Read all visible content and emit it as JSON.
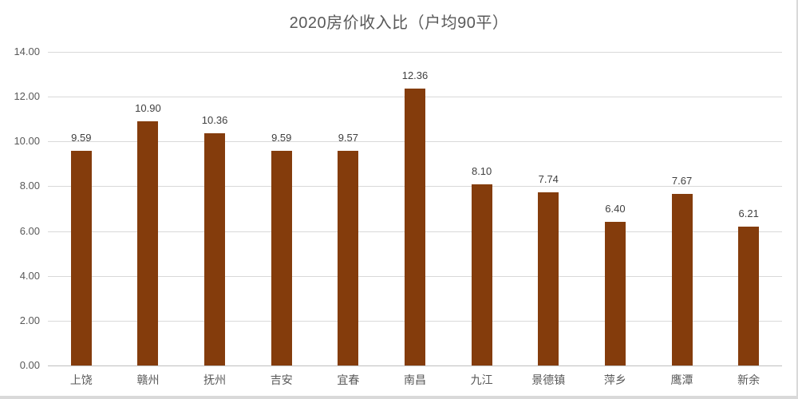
{
  "chart_data": {
    "type": "bar",
    "title": "2020房价收入比（户均90平）",
    "xlabel": "",
    "ylabel": "",
    "categories": [
      "上饶",
      "赣州",
      "抚州",
      "吉安",
      "宜春",
      "南昌",
      "九江",
      "景德镇",
      "萍乡",
      "鹰潭",
      "新余"
    ],
    "values": [
      9.59,
      10.9,
      10.36,
      9.59,
      9.57,
      12.36,
      8.1,
      7.74,
      6.4,
      7.67,
      6.21
    ],
    "value_labels": [
      "9.59",
      "10.90",
      "10.36",
      "9.59",
      "9.57",
      "12.36",
      "8.10",
      "7.74",
      "6.40",
      "7.67",
      "6.21"
    ],
    "ylim": [
      0,
      14
    ],
    "yticks": [
      "0.00",
      "2.00",
      "4.00",
      "6.00",
      "8.00",
      "10.00",
      "12.00",
      "14.00"
    ],
    "grid": true,
    "legend": null,
    "bar_color": "#843C0C"
  }
}
